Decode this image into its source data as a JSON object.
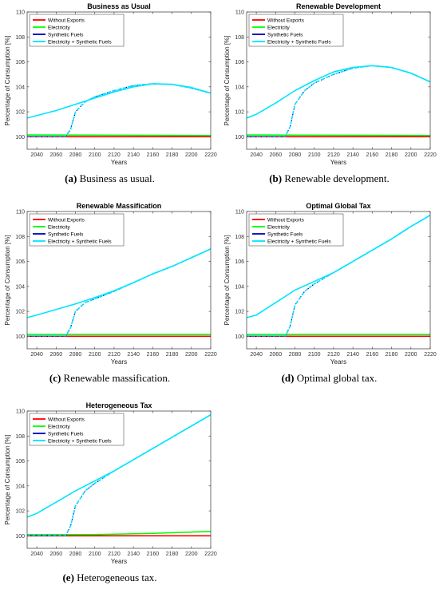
{
  "legend_entries": [
    {
      "name": "Without Exports",
      "color": "#ff0000"
    },
    {
      "name": "Electricity",
      "color": "#00ff00"
    },
    {
      "name": "Synthetic Fuels",
      "color": "#0000b4"
    },
    {
      "name": "Electricity + Synthetic Fuels",
      "color": "#00e5ff"
    }
  ],
  "chart_data": [
    {
      "type": "line",
      "title": "Business as Usual",
      "caption_letter": "(a)",
      "caption_text": " Business as usual.",
      "xlabel": "Years",
      "ylabel": "Percentage of Consumption [%]",
      "xlim": [
        2030,
        2220
      ],
      "ylim": [
        99,
        110
      ],
      "xticks": [
        2040,
        2060,
        2080,
        2100,
        2120,
        2140,
        2160,
        2180,
        2200,
        2220
      ],
      "yticks": [
        100,
        102,
        104,
        106,
        108,
        110
      ],
      "legend_position": "top-left",
      "series": [
        {
          "name": "Without Exports",
          "x": [
            2030,
            2220
          ],
          "y": [
            100.0,
            100.0
          ]
        },
        {
          "name": "Electricity",
          "x": [
            2030,
            2220
          ],
          "y": [
            100.15,
            100.1
          ]
        },
        {
          "name": "Synthetic Fuels",
          "x": [
            2030,
            2070,
            2075,
            2080,
            2090,
            2100,
            2120,
            2140,
            2160,
            2180,
            2200,
            2220
          ],
          "y": [
            100.0,
            100.0,
            100.6,
            102.0,
            102.8,
            103.2,
            103.7,
            104.1,
            104.25,
            104.2,
            103.9,
            103.5
          ]
        },
        {
          "name": "Electricity + Synthetic Fuels",
          "x": [
            2030,
            2040,
            2060,
            2080,
            2100,
            2120,
            2140,
            2160,
            2180,
            2200,
            2220
          ],
          "y": [
            101.5,
            101.7,
            102.1,
            102.6,
            103.1,
            103.6,
            104.0,
            104.25,
            104.2,
            103.95,
            103.5
          ]
        },
        {
          "name": "Electricity + Synthetic Fuels",
          "x": [
            2030,
            2070,
            2075,
            2080,
            2090,
            2100,
            2120,
            2140,
            2160,
            2180,
            2200,
            2220
          ],
          "y": [
            100.05,
            100.05,
            100.6,
            102.0,
            102.8,
            103.2,
            103.7,
            104.1,
            104.25,
            104.2,
            103.9,
            103.5
          ]
        }
      ]
    },
    {
      "type": "line",
      "title": "Renewable Development",
      "caption_letter": "(b)",
      "caption_text": " Renewable development.",
      "xlabel": "Years",
      "ylabel": "Percentage of Consumption [%]",
      "xlim": [
        2030,
        2220
      ],
      "ylim": [
        99,
        110
      ],
      "xticks": [
        2040,
        2060,
        2080,
        2100,
        2120,
        2140,
        2160,
        2180,
        2200,
        2220
      ],
      "yticks": [
        100,
        102,
        104,
        106,
        108,
        110
      ],
      "legend_position": "top-left",
      "series": [
        {
          "name": "Without Exports",
          "x": [
            2030,
            2220
          ],
          "y": [
            100.0,
            100.0
          ]
        },
        {
          "name": "Electricity",
          "x": [
            2030,
            2220
          ],
          "y": [
            100.15,
            100.1
          ]
        },
        {
          "name": "Synthetic Fuels",
          "x": [
            2030,
            2070,
            2075,
            2080,
            2090,
            2100,
            2120,
            2140,
            2160,
            2180,
            2200,
            2220
          ],
          "y": [
            100.0,
            100.0,
            100.8,
            102.6,
            103.7,
            104.3,
            105.0,
            105.5,
            105.7,
            105.55,
            105.1,
            104.4
          ]
        },
        {
          "name": "Electricity + Synthetic Fuels",
          "x": [
            2030,
            2040,
            2060,
            2080,
            2100,
            2120,
            2140,
            2160,
            2180,
            2200,
            2220
          ],
          "y": [
            101.5,
            101.8,
            102.7,
            103.7,
            104.5,
            105.2,
            105.55,
            105.7,
            105.55,
            105.1,
            104.4
          ]
        },
        {
          "name": "Electricity + Synthetic Fuels",
          "x": [
            2030,
            2070,
            2075,
            2080,
            2090,
            2100,
            2120,
            2140,
            2160,
            2180,
            2200,
            2220
          ],
          "y": [
            100.05,
            100.05,
            100.8,
            102.6,
            103.7,
            104.3,
            105.0,
            105.5,
            105.7,
            105.55,
            105.1,
            104.4
          ]
        }
      ]
    },
    {
      "type": "line",
      "title": "Renewable Massification",
      "caption_letter": "(c)",
      "caption_text": " Renewable massification.",
      "xlabel": "Years",
      "ylabel": "Percentage of Consumption [%]",
      "xlim": [
        2030,
        2220
      ],
      "ylim": [
        99,
        110
      ],
      "xticks": [
        2040,
        2060,
        2080,
        2100,
        2120,
        2140,
        2160,
        2180,
        2200,
        2220
      ],
      "yticks": [
        100,
        102,
        104,
        106,
        108,
        110
      ],
      "legend_position": "top-left",
      "series": [
        {
          "name": "Without Exports",
          "x": [
            2030,
            2220
          ],
          "y": [
            100.0,
            100.0
          ]
        },
        {
          "name": "Electricity",
          "x": [
            2030,
            2220
          ],
          "y": [
            100.15,
            100.15
          ]
        },
        {
          "name": "Synthetic Fuels",
          "x": [
            2030,
            2070,
            2075,
            2080,
            2090,
            2100,
            2120,
            2140,
            2160,
            2180,
            2200,
            2220
          ],
          "y": [
            100.0,
            100.0,
            100.7,
            102.0,
            102.7,
            103.0,
            103.6,
            104.3,
            105.0,
            105.6,
            106.3,
            107.0
          ]
        },
        {
          "name": "Electricity + Synthetic Fuels",
          "x": [
            2030,
            2040,
            2060,
            2080,
            2100,
            2120,
            2140,
            2160,
            2180,
            2200,
            2220
          ],
          "y": [
            101.5,
            101.7,
            102.15,
            102.6,
            103.1,
            103.65,
            104.3,
            105.0,
            105.6,
            106.3,
            107.0
          ]
        },
        {
          "name": "Electricity + Synthetic Fuels",
          "x": [
            2030,
            2070,
            2075,
            2080,
            2090,
            2100,
            2120,
            2140,
            2160,
            2180,
            2200,
            2220
          ],
          "y": [
            100.05,
            100.05,
            100.7,
            102.0,
            102.7,
            103.0,
            103.6,
            104.3,
            105.0,
            105.6,
            106.3,
            107.0
          ]
        }
      ]
    },
    {
      "type": "line",
      "title": "Optimal Global Tax",
      "caption_letter": "(d)",
      "caption_text": " Optimal global tax.",
      "xlabel": "Years",
      "ylabel": "Percentage of Consumption [%]",
      "xlim": [
        2030,
        2220
      ],
      "ylim": [
        99,
        110
      ],
      "xticks": [
        2040,
        2060,
        2080,
        2100,
        2120,
        2140,
        2160,
        2180,
        2200,
        2220
      ],
      "yticks": [
        100,
        102,
        104,
        106,
        108,
        110
      ],
      "legend_position": "top-left",
      "series": [
        {
          "name": "Without Exports",
          "x": [
            2030,
            2220
          ],
          "y": [
            100.0,
            100.0
          ]
        },
        {
          "name": "Electricity",
          "x": [
            2030,
            2220
          ],
          "y": [
            100.15,
            100.15
          ]
        },
        {
          "name": "Synthetic Fuels",
          "x": [
            2030,
            2070,
            2075,
            2080,
            2090,
            2100,
            2120,
            2140,
            2160,
            2180,
            2200,
            2220
          ],
          "y": [
            100.0,
            100.0,
            100.8,
            102.5,
            103.6,
            104.2,
            105.1,
            106.0,
            106.9,
            107.8,
            108.8,
            109.7
          ]
        },
        {
          "name": "Electricity + Synthetic Fuels",
          "x": [
            2030,
            2040,
            2060,
            2080,
            2100,
            2120,
            2140,
            2160,
            2180,
            2200,
            2220
          ],
          "y": [
            101.5,
            101.7,
            102.7,
            103.7,
            104.4,
            105.1,
            106.0,
            106.9,
            107.8,
            108.8,
            109.7
          ]
        },
        {
          "name": "Electricity + Synthetic Fuels",
          "x": [
            2030,
            2070,
            2075,
            2080,
            2090,
            2100,
            2120,
            2140,
            2160,
            2180,
            2200,
            2220
          ],
          "y": [
            100.05,
            100.05,
            100.8,
            102.5,
            103.6,
            104.2,
            105.1,
            106.0,
            106.9,
            107.8,
            108.8,
            109.7
          ]
        }
      ]
    },
    {
      "type": "line",
      "title": "Heterogeneous Tax",
      "caption_letter": "(e)",
      "caption_text": " Heterogeneous tax.",
      "xlabel": "Years",
      "ylabel": "Percentage of Consumption [%]",
      "xlim": [
        2030,
        2220
      ],
      "ylim": [
        99,
        110
      ],
      "xticks": [
        2040,
        2060,
        2080,
        2100,
        2120,
        2140,
        2160,
        2180,
        2200,
        2220
      ],
      "yticks": [
        100,
        102,
        104,
        106,
        108,
        110
      ],
      "legend_position": "top-left",
      "series": [
        {
          "name": "Without Exports",
          "x": [
            2030,
            2220
          ],
          "y": [
            100.0,
            100.0
          ]
        },
        {
          "name": "Electricity",
          "x": [
            2030,
            2100,
            2160,
            2220
          ],
          "y": [
            100.1,
            100.1,
            100.2,
            100.35
          ]
        },
        {
          "name": "Synthetic Fuels",
          "x": [
            2030,
            2070,
            2075,
            2080,
            2090,
            2100,
            2120,
            2140,
            2160,
            2180,
            2200,
            2220
          ],
          "y": [
            100.0,
            100.0,
            100.8,
            102.4,
            103.6,
            104.2,
            105.2,
            106.1,
            107.0,
            107.9,
            108.8,
            109.7
          ]
        },
        {
          "name": "Electricity + Synthetic Fuels",
          "x": [
            2030,
            2040,
            2060,
            2080,
            2100,
            2120,
            2140,
            2160,
            2180,
            2200,
            2220
          ],
          "y": [
            101.5,
            101.8,
            102.7,
            103.6,
            104.4,
            105.2,
            106.1,
            107.0,
            107.9,
            108.8,
            109.7
          ]
        },
        {
          "name": "Electricity + Synthetic Fuels",
          "x": [
            2030,
            2070,
            2075,
            2080,
            2090,
            2100,
            2120,
            2140,
            2160,
            2180,
            2200,
            2220
          ],
          "y": [
            100.05,
            100.05,
            100.8,
            102.4,
            103.6,
            104.2,
            105.2,
            106.1,
            107.0,
            107.9,
            108.8,
            109.7
          ]
        }
      ]
    }
  ]
}
